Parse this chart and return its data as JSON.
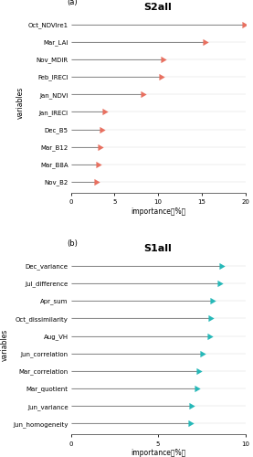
{
  "panel_a": {
    "title": "S2all",
    "label": "(a)",
    "variables": [
      "Oct_NDVIre1",
      "Mar_LAI",
      "Nov_MDIR",
      "Feb_IRECI",
      "Jan_NDVI",
      "Jan_IRECI",
      "Dec_B5",
      "Mar_B12",
      "Mar_B8A",
      "Nov_B2"
    ],
    "values": [
      19.8,
      15.3,
      10.5,
      10.3,
      8.2,
      3.8,
      3.5,
      3.3,
      3.1,
      2.9
    ],
    "color": "#E87060",
    "xlim": [
      0,
      20
    ],
    "xticks": [
      0,
      5,
      10,
      15,
      20
    ],
    "xlabel": "importance（%）"
  },
  "panel_b": {
    "title": "S1all",
    "label": "(b)",
    "variables": [
      "Dec_variance",
      "Jul_difference",
      "Apr_sum",
      "Oct_dissimilarity",
      "Aug_VH",
      "Jun_correlation",
      "Mar_correlation",
      "Mar_quotient",
      "Jun_variance",
      "Jun_homogeneity"
    ],
    "values": [
      8.6,
      8.5,
      8.1,
      8.0,
      7.9,
      7.5,
      7.3,
      7.2,
      6.9,
      6.8
    ],
    "color": "#26B8B8",
    "xlim": [
      0,
      10
    ],
    "xticks": [
      0,
      5,
      10
    ],
    "xlabel": "importance（%）"
  },
  "ylabel": "variables",
  "line_color": "#888888",
  "line_width": 0.7,
  "marker_size": 6,
  "tick_font_size": 5,
  "label_font_size": 5.5,
  "title_font_size": 8,
  "panel_label_font_size": 6
}
